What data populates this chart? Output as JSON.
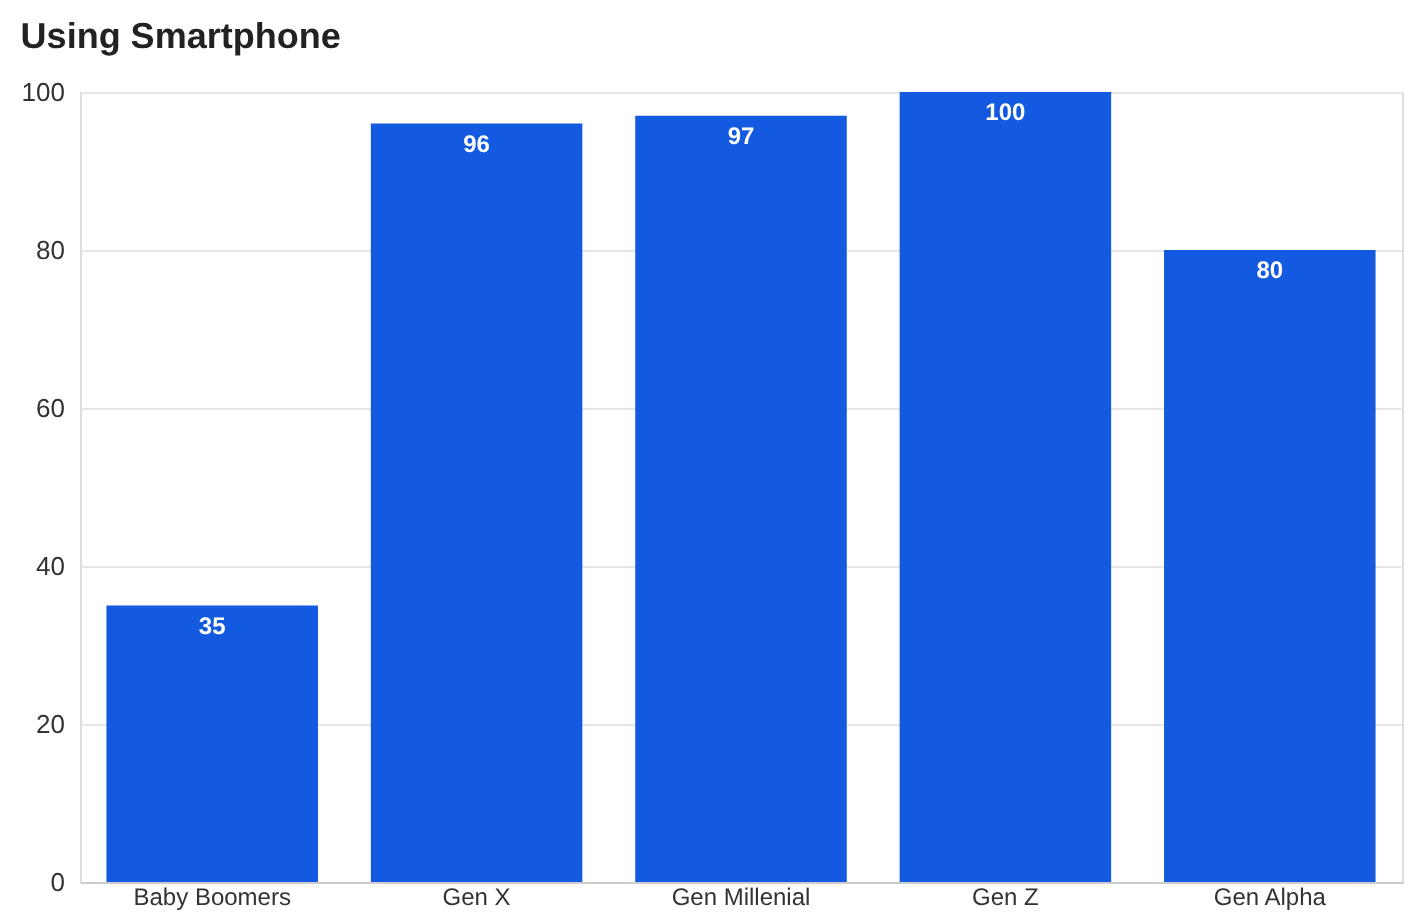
{
  "chart_data": {
    "type": "bar",
    "title": "Using Smartphone",
    "categories": [
      "Baby Boomers",
      "Gen X",
      "Gen Millenial",
      "Gen Z",
      "Gen Alpha"
    ],
    "values": [
      35,
      96,
      97,
      100,
      80
    ],
    "color": "#145ae0",
    "ylim": [
      0,
      100
    ],
    "yticks": [
      0,
      20,
      40,
      60,
      80,
      100
    ],
    "grid": "y",
    "data_labels": true
  }
}
